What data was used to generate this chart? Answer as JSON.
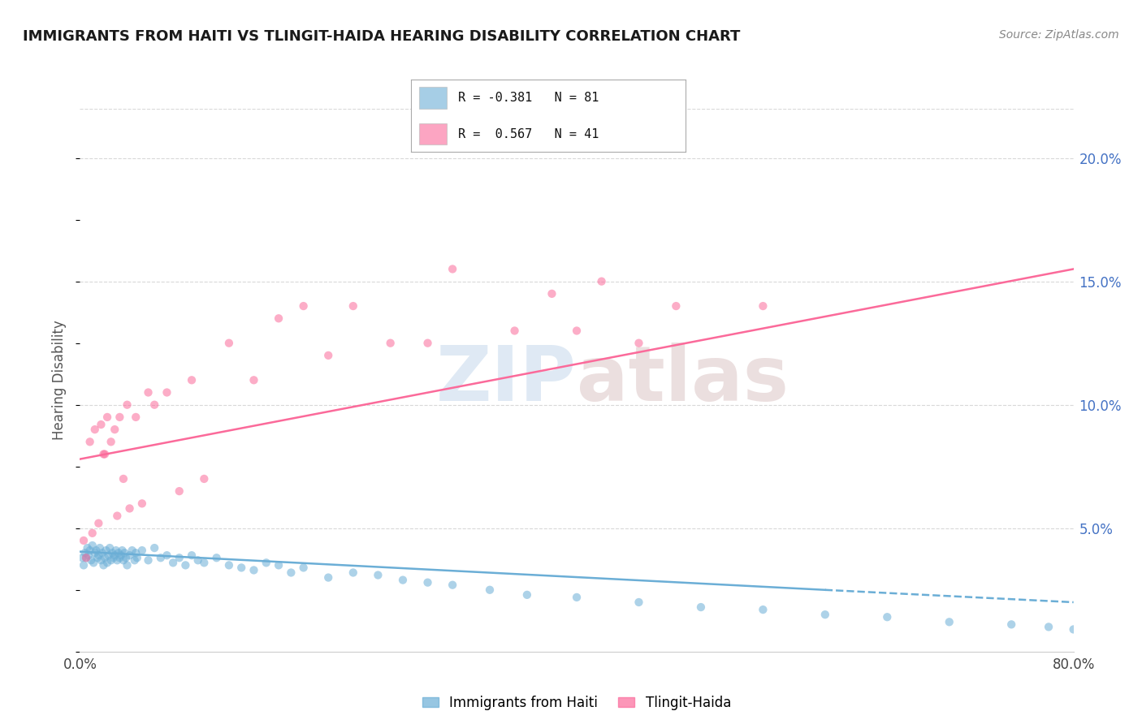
{
  "title": "IMMIGRANTS FROM HAITI VS TLINGIT-HAIDA HEARING DISABILITY CORRELATION CHART",
  "source": "Source: ZipAtlas.com",
  "ylabel": "Hearing Disability",
  "watermark": "ZIPatlas",
  "legend": [
    {
      "label": "R = -0.381   N = 81",
      "color": "#6baed6"
    },
    {
      "label": "R =  0.567   N = 41",
      "color": "#fb6a9a"
    }
  ],
  "ytick_values": [
    5.0,
    10.0,
    15.0,
    20.0
  ],
  "xlim": [
    0.0,
    80.0
  ],
  "ylim": [
    0.0,
    22.0
  ],
  "blue_scatter": {
    "x": [
      0.2,
      0.3,
      0.4,
      0.5,
      0.6,
      0.7,
      0.8,
      0.9,
      1.0,
      1.1,
      1.2,
      1.3,
      1.4,
      1.5,
      1.6,
      1.7,
      1.8,
      1.9,
      2.0,
      2.1,
      2.2,
      2.3,
      2.4,
      2.5,
      2.6,
      2.7,
      2.8,
      2.9,
      3.0,
      3.1,
      3.2,
      3.3,
      3.4,
      3.5,
      3.6,
      3.7,
      3.8,
      4.0,
      4.2,
      4.4,
      4.5,
      4.6,
      5.0,
      5.5,
      6.0,
      6.5,
      7.0,
      7.5,
      8.0,
      8.5,
      9.0,
      9.5,
      10.0,
      11.0,
      12.0,
      13.0,
      14.0,
      15.0,
      16.0,
      17.0,
      18.0,
      20.0,
      22.0,
      24.0,
      26.0,
      28.0,
      30.0,
      33.0,
      36.0,
      40.0,
      45.0,
      50.0,
      55.0,
      60.0,
      65.0,
      70.0,
      75.0,
      78.0,
      80.0,
      81.0,
      82.0
    ],
    "y": [
      3.8,
      3.5,
      4.0,
      3.8,
      4.2,
      3.9,
      4.1,
      3.7,
      4.3,
      3.6,
      4.0,
      4.1,
      3.8,
      3.9,
      4.2,
      3.7,
      4.0,
      3.5,
      3.8,
      4.1,
      3.6,
      3.9,
      4.2,
      3.7,
      4.0,
      3.8,
      3.9,
      4.1,
      3.7,
      4.0,
      3.8,
      3.9,
      4.1,
      3.7,
      4.0,
      3.8,
      3.5,
      3.9,
      4.1,
      3.7,
      4.0,
      3.8,
      4.1,
      3.7,
      4.2,
      3.8,
      3.9,
      3.6,
      3.8,
      3.5,
      3.9,
      3.7,
      3.6,
      3.8,
      3.5,
      3.4,
      3.3,
      3.6,
      3.5,
      3.2,
      3.4,
      3.0,
      3.2,
      3.1,
      2.9,
      2.8,
      2.7,
      2.5,
      2.3,
      2.2,
      2.0,
      1.8,
      1.7,
      1.5,
      1.4,
      1.2,
      1.1,
      1.0,
      0.9,
      0.8,
      0.7
    ]
  },
  "pink_scatter": {
    "x": [
      0.3,
      0.5,
      0.8,
      1.0,
      1.2,
      1.5,
      1.7,
      1.9,
      2.0,
      2.2,
      2.5,
      2.8,
      3.0,
      3.2,
      3.5,
      3.8,
      4.0,
      4.5,
      5.0,
      5.5,
      6.0,
      7.0,
      8.0,
      9.0,
      10.0,
      12.0,
      14.0,
      16.0,
      18.0,
      20.0,
      22.0,
      25.0,
      28.0,
      30.0,
      35.0,
      38.0,
      40.0,
      42.0,
      45.0,
      48.0,
      55.0
    ],
    "y": [
      4.5,
      3.8,
      8.5,
      4.8,
      9.0,
      5.2,
      9.2,
      8.0,
      8.0,
      9.5,
      8.5,
      9.0,
      5.5,
      9.5,
      7.0,
      10.0,
      5.8,
      9.5,
      6.0,
      10.5,
      10.0,
      10.5,
      6.5,
      11.0,
      7.0,
      12.5,
      11.0,
      13.5,
      14.0,
      12.0,
      14.0,
      12.5,
      12.5,
      15.5,
      13.0,
      14.5,
      13.0,
      15.0,
      12.5,
      14.0,
      14.0
    ]
  },
  "blue_line_solid": {
    "x0": 0.0,
    "y0": 4.05,
    "x1": 60.0,
    "y1": 2.5
  },
  "blue_line_dashed": {
    "x0": 60.0,
    "y0": 2.5,
    "x1": 80.0,
    "y1": 2.0
  },
  "pink_line": {
    "x0": 0.0,
    "y0": 7.8,
    "x1": 80.0,
    "y1": 15.5
  },
  "blue_color": "#6baed6",
  "pink_color": "#fb6a9a",
  "grid_color": "#d8d8d8",
  "background_color": "#ffffff",
  "title_color": "#1a1a1a",
  "source_color": "#888888",
  "ytick_color": "#4472c4"
}
